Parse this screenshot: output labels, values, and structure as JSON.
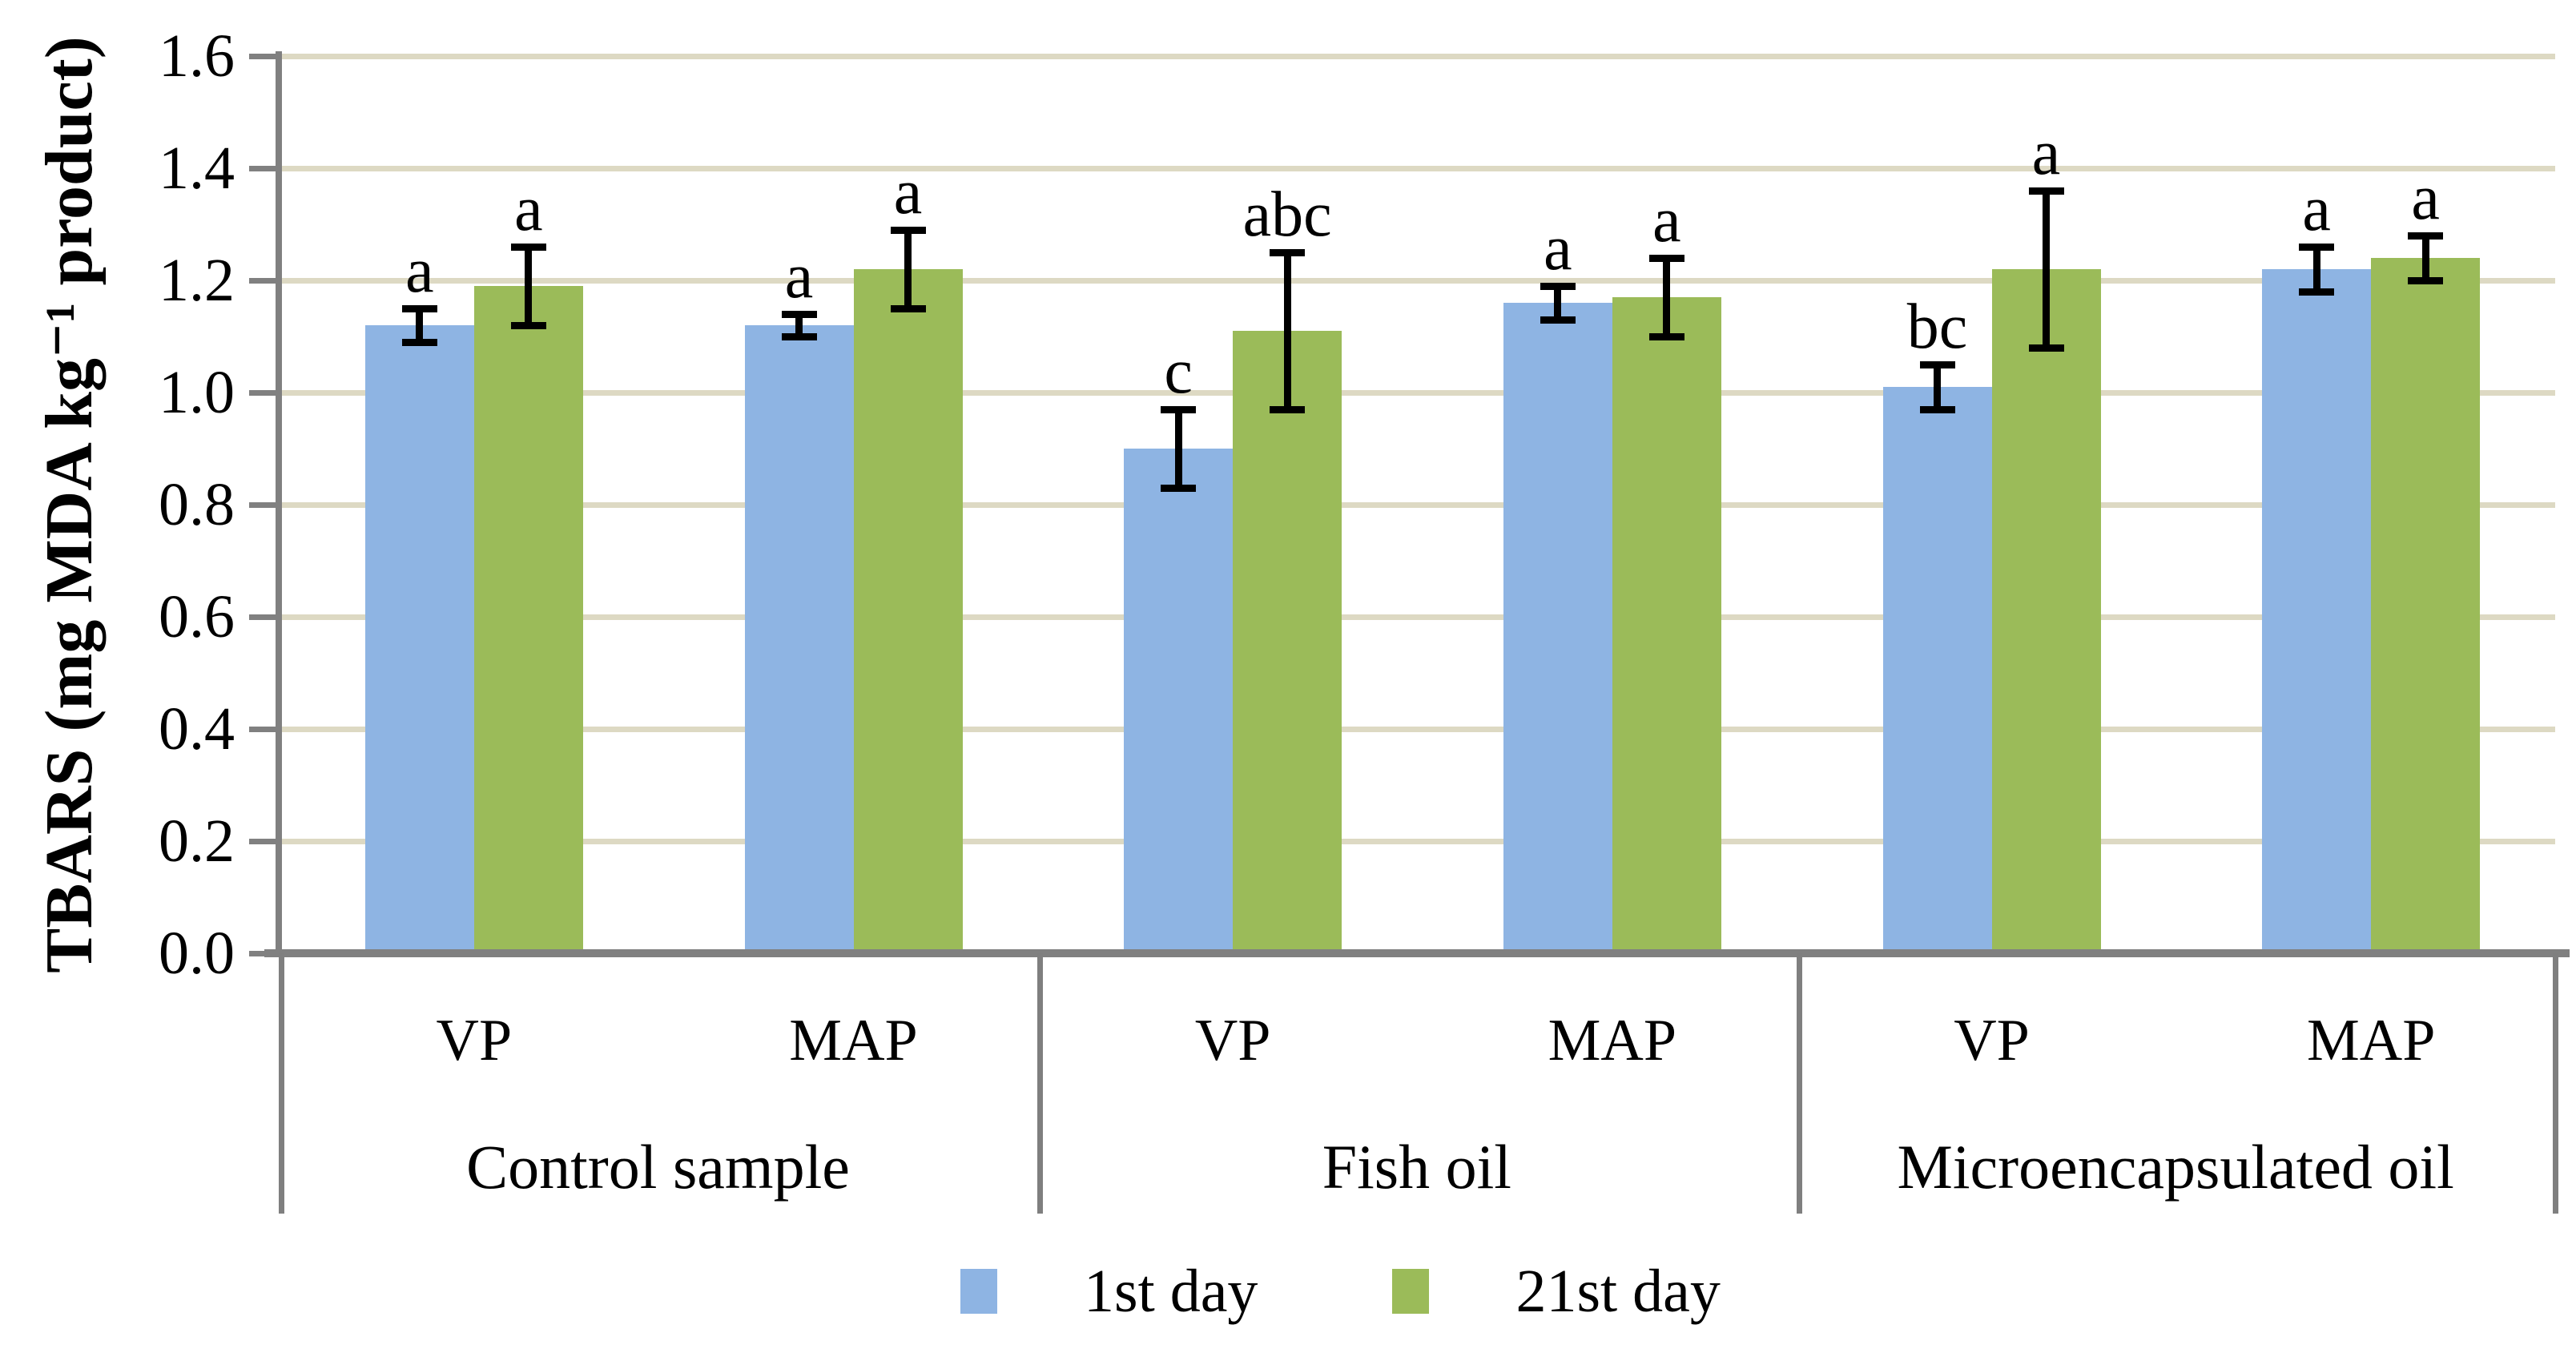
{
  "chart_data": {
    "type": "bar",
    "title": "",
    "ylabel": "TBARS (mg MDA kg⁻¹ product)",
    "xlabel": "",
    "ylim": [
      0.0,
      1.6
    ],
    "ytick_step": 0.2,
    "ytick_labels": [
      "0.0",
      "0.2",
      "0.4",
      "0.6",
      "0.8",
      "1.0",
      "1.2",
      "1.4",
      "1.6"
    ],
    "grid": true,
    "legend_position": "bottom",
    "groups": [
      "Control sample",
      "Fish oil",
      "Microencapsulated oil"
    ],
    "categories_per_group": [
      "VP",
      "MAP"
    ],
    "slot_labels": [
      "VP",
      "MAP",
      "VP",
      "MAP",
      "VP",
      "MAP"
    ],
    "series": [
      {
        "name": "1st day",
        "color": "#8EB4E3",
        "values": [
          1.12,
          1.12,
          0.9,
          1.16,
          1.01,
          1.22
        ],
        "errors": [
          0.03,
          0.02,
          0.07,
          0.03,
          0.04,
          0.04
        ],
        "letters": [
          "a",
          "a",
          "c",
          "a",
          "bc",
          "a"
        ]
      },
      {
        "name": "21st day",
        "color": "#9BBB59",
        "values": [
          1.19,
          1.22,
          1.11,
          1.17,
          1.22,
          1.24
        ],
        "errors": [
          0.07,
          0.07,
          0.14,
          0.07,
          0.14,
          0.04
        ],
        "letters": [
          "a",
          "a",
          "abc",
          "a",
          "a",
          "a"
        ]
      }
    ],
    "colors": {
      "gridline": "#DDD9C3",
      "axis": "#808080",
      "divider": "#7F7F7F",
      "error_bar": "#000000",
      "text": "#000000",
      "background": "#FFFFFF"
    }
  }
}
